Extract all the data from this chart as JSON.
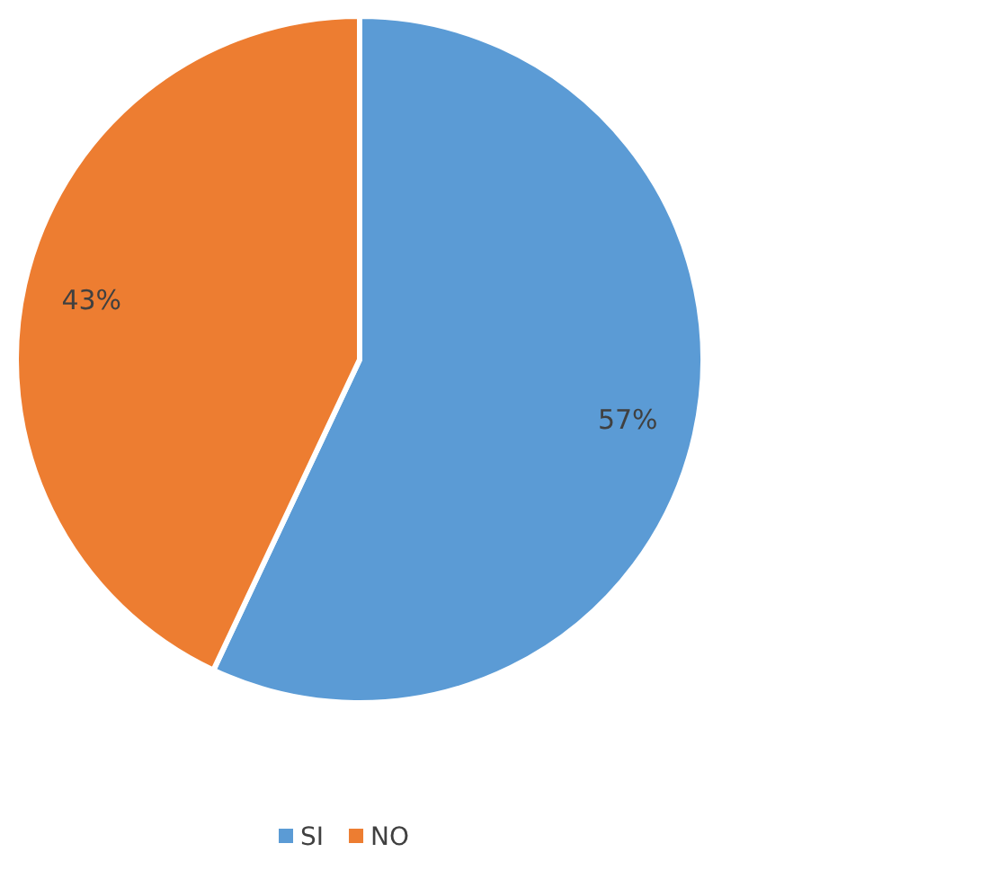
{
  "chart_data": {
    "type": "pie",
    "categories": [
      "SI",
      "NO"
    ],
    "values": [
      57,
      43
    ],
    "colors": [
      "#5b9bd5",
      "#ed7d31"
    ],
    "value_labels": [
      "57%",
      "43%"
    ],
    "legend": "bottom"
  }
}
